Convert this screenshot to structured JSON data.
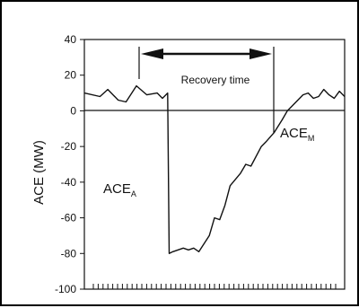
{
  "chart_data": {
    "type": "line",
    "title": "",
    "xlabel": "",
    "ylabel": "ACE (MW)",
    "ylim": [
      -100,
      40
    ],
    "y_ticks": [
      40,
      20,
      0,
      -20,
      -40,
      -60,
      -80,
      -100
    ],
    "y_tick_labels": [
      "40",
      "20",
      "0",
      "-20",
      "-40",
      "-60",
      "-80",
      "-100"
    ],
    "x_tick_count": 50,
    "grid": false,
    "series": [
      {
        "name": "",
        "x": [
          0,
          3,
          4.5,
          6.5,
          8,
          10,
          12,
          14,
          15,
          16,
          16.3,
          17,
          19,
          20,
          21,
          22,
          24,
          25,
          26,
          27,
          28,
          30,
          31,
          32,
          34,
          35,
          36.5,
          38,
          39,
          40,
          42,
          43,
          44,
          45,
          46,
          47,
          48,
          49,
          50
        ],
        "y": [
          10,
          8,
          12,
          6,
          5,
          14,
          9,
          10,
          7,
          10,
          -80,
          -79,
          -77,
          -78,
          -77,
          -79,
          -70,
          -60,
          -61,
          -53,
          -42,
          -35,
          -30,
          -31,
          -20,
          -17,
          -12,
          -5,
          0,
          3,
          9,
          10,
          7,
          8,
          12,
          9,
          7,
          11,
          8
        ]
      }
    ],
    "annotations": {
      "recovery_label": "Recovery time",
      "ace_a_main": "ACE",
      "ace_a_sub": "A",
      "ace_m_main": "ACE",
      "ace_m_sub": "M"
    }
  }
}
